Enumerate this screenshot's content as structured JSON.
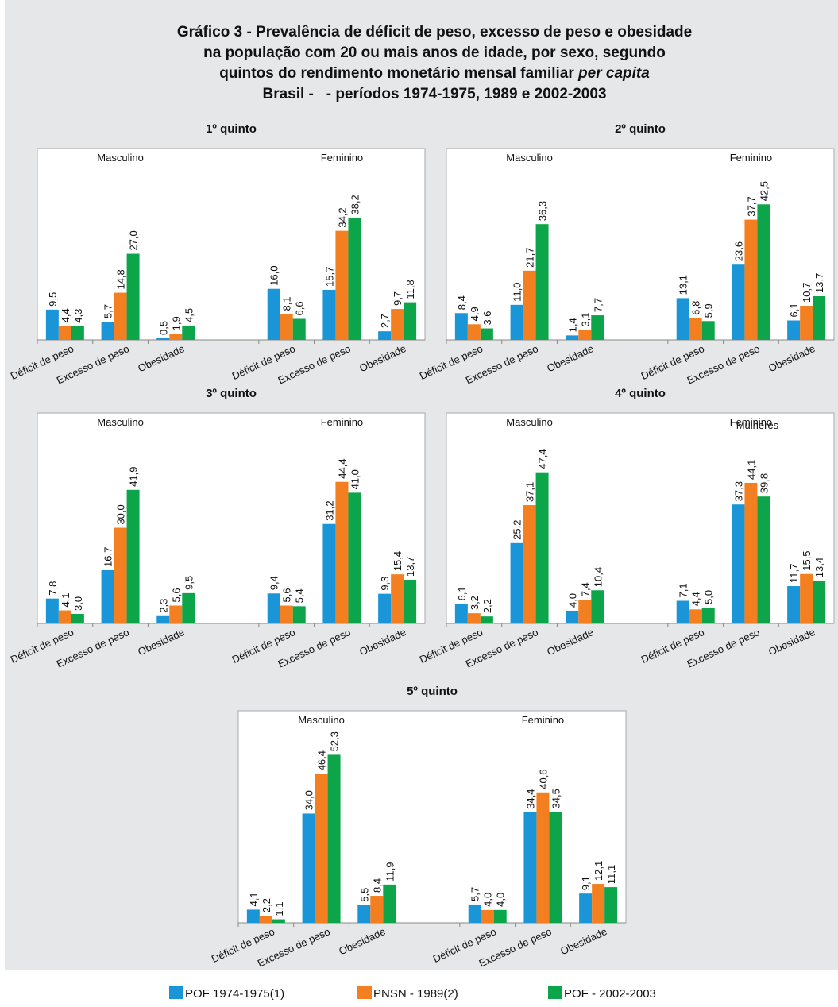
{
  "title_lines": [
    "Gráfico 3 - Prevalência de déficit de peso, excesso de peso e obesidade",
    "na população com 20 ou mais anos de idade, por sexo, segundo",
    "quintos do rendimento monetário mensal familiar ",
    "Brasil -   - períodos 1974-1975, 1989 e 2002-2003"
  ],
  "title_italic": "per capita",
  "chart_data": [
    {
      "type": "bar",
      "title": "1º quinto",
      "groups": [
        "Masculino",
        "Feminino"
      ],
      "categories": [
        "Déficit de peso",
        "Excesso de peso",
        "Obesidade",
        "Déficit de peso",
        "Excesso de peso",
        "Obesidade"
      ],
      "ylim": [
        0,
        60
      ],
      "series": [
        {
          "name": "POF 1974-1975(1)",
          "color": "#1a96d8",
          "values": [
            9.5,
            5.7,
            0.5,
            16.0,
            15.7,
            2.7
          ],
          "value_labels": [
            "9,5",
            "5,7",
            "0,5",
            "16,0",
            "15,7",
            "2,7"
          ]
        },
        {
          "name": "PNSN - 1989(2)",
          "color": "#f47f20",
          "values": [
            4.4,
            14.8,
            1.9,
            8.1,
            34.2,
            9.7
          ],
          "value_labels": [
            "4,4",
            "14,8",
            "1,9",
            "8,1",
            "34,2",
            "9,7"
          ]
        },
        {
          "name": "POF - 2002-2003",
          "color": "#0ca54a",
          "values": [
            4.3,
            27.0,
            4.5,
            6.6,
            38.2,
            11.8
          ],
          "value_labels": [
            "4,3",
            "27,0",
            "4,5",
            "6,6",
            "38,2",
            "11,8"
          ]
        }
      ]
    },
    {
      "type": "bar",
      "title": "2º quinto",
      "groups": [
        "Masculino",
        "Feminino"
      ],
      "categories": [
        "Déficit de peso",
        "Excesso de peso",
        "Obesidade",
        "Déficit de peso",
        "Excesso de peso",
        "Obesidade"
      ],
      "ylim": [
        0,
        60
      ],
      "series": [
        {
          "name": "POF 1974-1975(1)",
          "color": "#1a96d8",
          "values": [
            8.4,
            11.0,
            1.4,
            13.1,
            23.6,
            6.1
          ],
          "value_labels": [
            "8,4",
            "11,0",
            "1,4",
            "13,1",
            "23,6",
            "6,1"
          ]
        },
        {
          "name": "PNSN - 1989(2)",
          "color": "#f47f20",
          "values": [
            4.9,
            21.7,
            3.1,
            6.8,
            37.7,
            10.7
          ],
          "value_labels": [
            "4,9",
            "21,7",
            "3,1",
            "6,8",
            "37,7",
            "10,7"
          ]
        },
        {
          "name": "POF - 2002-2003",
          "color": "#0ca54a",
          "values": [
            3.6,
            36.3,
            7.7,
            5.9,
            42.5,
            13.7
          ],
          "value_labels": [
            "3,6",
            "36,3",
            "7,7",
            "5,9",
            "42,5",
            "13,7"
          ]
        }
      ]
    },
    {
      "type": "bar",
      "title": "3º quinto",
      "groups": [
        "Masculino",
        "Feminino"
      ],
      "categories": [
        "Déficit de peso",
        "Excesso de peso",
        "Obesidade",
        "Déficit de peso",
        "Excesso de peso",
        "Obesidade"
      ],
      "ylim": [
        0,
        66
      ],
      "series": [
        {
          "name": "POF 1974-1975(1)",
          "color": "#1a96d8",
          "values": [
            7.8,
            16.7,
            2.3,
            9.4,
            31.2,
            9.3
          ],
          "value_labels": [
            "7,8",
            "16,7",
            "2,3",
            "9,4",
            "31,2",
            "9,3"
          ]
        },
        {
          "name": "PNSN - 1989(2)",
          "color": "#f47f20",
          "values": [
            4.1,
            30.0,
            5.6,
            5.6,
            44.4,
            15.4
          ],
          "value_labels": [
            "4,1",
            "30,0",
            "5,6",
            "5,6",
            "44,4",
            "15,4"
          ]
        },
        {
          "name": "POF - 2002-2003",
          "color": "#0ca54a",
          "values": [
            3.0,
            41.9,
            9.5,
            5.4,
            41.0,
            13.7
          ],
          "value_labels": [
            "3,0",
            "41,9",
            "9,5",
            "5,4",
            "41,0",
            "13,7"
          ]
        }
      ]
    },
    {
      "type": "bar",
      "title": "4º quinto",
      "groups": [
        "Masculino",
        "Feminino"
      ],
      "overlay_label": "Mulheres",
      "categories": [
        "Déficit de peso",
        "Excesso de peso",
        "Obesidade",
        "Déficit de peso",
        "Excesso de peso",
        "Obesidade"
      ],
      "ylim": [
        0,
        66
      ],
      "series": [
        {
          "name": "POF 1974-1975(1)",
          "color": "#1a96d8",
          "values": [
            6.1,
            25.2,
            4.0,
            7.1,
            37.3,
            11.7
          ],
          "value_labels": [
            "6,1",
            "25,2",
            "4,0",
            "7,1",
            "37,3",
            "11,7"
          ]
        },
        {
          "name": "PNSN - 1989(2)",
          "color": "#f47f20",
          "values": [
            3.2,
            37.1,
            7.4,
            4.4,
            44.1,
            15.5
          ],
          "value_labels": [
            "3,2",
            "37,1",
            "7,4",
            "4,4",
            "44,1",
            "15,5"
          ]
        },
        {
          "name": "POF - 2002-2003",
          "color": "#0ca54a",
          "values": [
            2.2,
            47.4,
            10.4,
            5.0,
            39.8,
            13.4
          ],
          "value_labels": [
            "2,2",
            "47,4",
            "10,4",
            "5,0",
            "39,8",
            "13,4"
          ]
        }
      ]
    },
    {
      "type": "bar",
      "title": "5º quinto",
      "groups": [
        "Masculino",
        "Feminino"
      ],
      "categories": [
        "Déficit de peso",
        "Excesso de peso",
        "Obesidade",
        "Déficit de peso",
        "Excesso de peso",
        "Obesidade"
      ],
      "ylim": [
        0,
        66
      ],
      "series": [
        {
          "name": "POF 1974-1975(1)",
          "color": "#1a96d8",
          "values": [
            4.1,
            34.0,
            5.5,
            5.7,
            34.4,
            9.1
          ],
          "value_labels": [
            "4,1",
            "34,0",
            "5,5",
            "5,7",
            "34,4",
            "9,1"
          ]
        },
        {
          "name": "PNSN - 1989(2)",
          "color": "#f47f20",
          "values": [
            2.2,
            46.4,
            8.4,
            4.0,
            40.6,
            12.1
          ],
          "value_labels": [
            "2,2",
            "46,4",
            "8,4",
            "4,0",
            "40,6",
            "12,1"
          ]
        },
        {
          "name": "POF - 2002-2003",
          "color": "#0ca54a",
          "values": [
            1.1,
            52.3,
            11.9,
            4.0,
            34.5,
            11.1
          ],
          "value_labels": [
            "1,1",
            "52,3",
            "11,9",
            "4,0",
            "34,5",
            "11,1"
          ]
        }
      ]
    }
  ]
}
